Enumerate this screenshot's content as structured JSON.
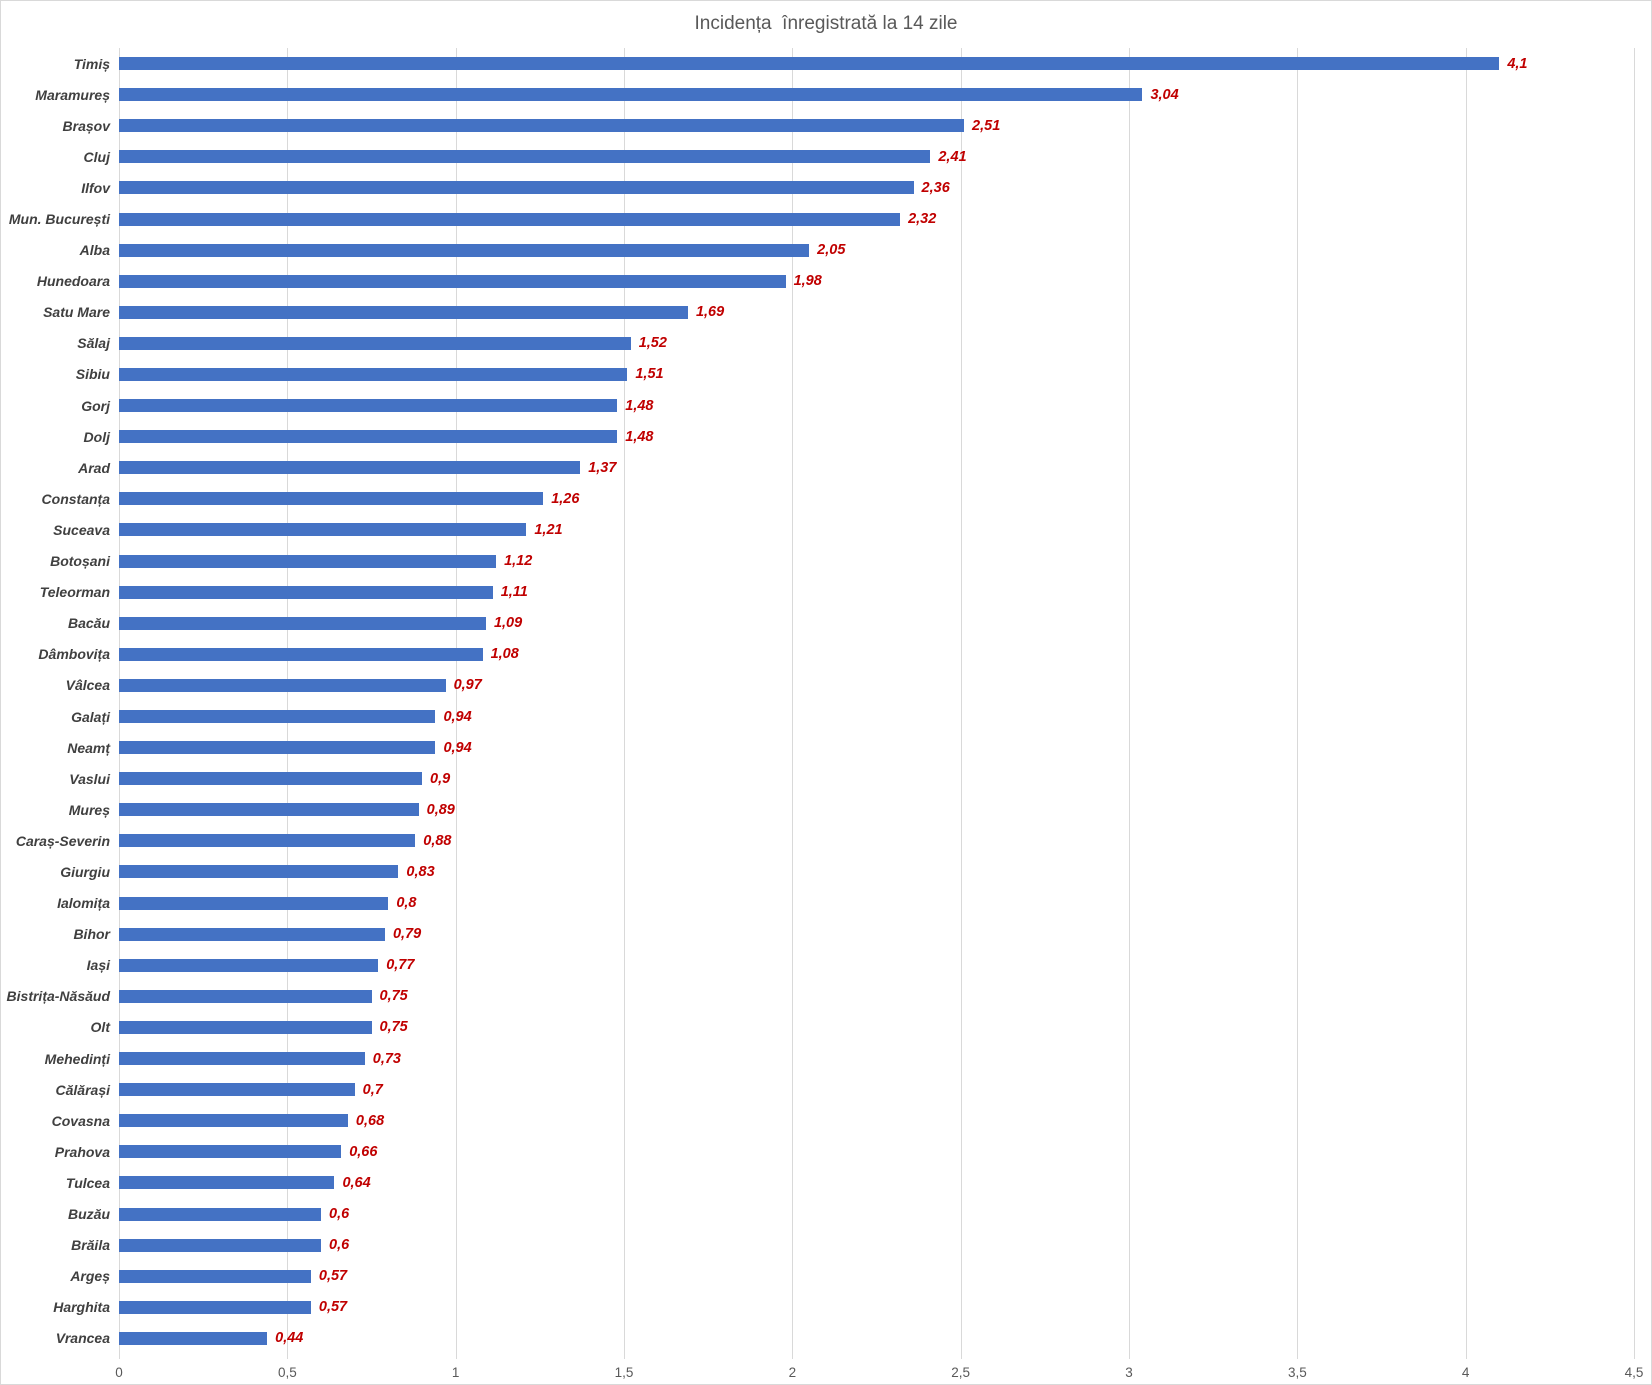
{
  "chart_data": {
    "type": "bar",
    "orientation": "horizontal",
    "title": "Incidența  înregistrată la 14 zile",
    "categories": [
      "Timiș",
      "Maramureș",
      "Brașov",
      "Cluj",
      "Ilfov",
      "Mun. București",
      "Alba",
      "Hunedoara",
      "Satu Mare",
      "Sălaj",
      "Sibiu",
      "Gorj",
      "Dolj",
      "Arad",
      "Constanța",
      "Suceava",
      "Botoșani",
      "Teleorman",
      "Bacău",
      "Dâmbovița",
      "Vâlcea",
      "Galați",
      "Neamț",
      "Vaslui",
      "Mureș",
      "Caraș-Severin",
      "Giurgiu",
      "Ialomița",
      "Bihor",
      "Iași",
      "Bistrița-Năsăud",
      "Olt",
      "Mehedinți",
      "Călărași",
      "Covasna",
      "Prahova",
      "Tulcea",
      "Buzău",
      "Brăila",
      "Argeș",
      "Harghita",
      "Vrancea"
    ],
    "values": [
      4.1,
      3.04,
      2.51,
      2.41,
      2.36,
      2.32,
      2.05,
      1.98,
      1.69,
      1.52,
      1.51,
      1.48,
      1.48,
      1.37,
      1.26,
      1.21,
      1.12,
      1.11,
      1.09,
      1.08,
      0.97,
      0.94,
      0.94,
      0.9,
      0.89,
      0.88,
      0.83,
      0.8,
      0.79,
      0.77,
      0.75,
      0.75,
      0.73,
      0.7,
      0.68,
      0.66,
      0.64,
      0.6,
      0.6,
      0.57,
      0.57,
      0.44
    ],
    "value_labels": [
      "4,1",
      "3,04",
      "2,51",
      "2,41",
      "2,36",
      "2,32",
      "2,05",
      "1,98",
      "1,69",
      "1,52",
      "1,51",
      "1,48",
      "1,48",
      "1,37",
      "1,26",
      "1,21",
      "1,12",
      "1,11",
      "1,09",
      "1,08",
      "0,97",
      "0,94",
      "0,94",
      "0,9",
      "0,89",
      "0,88",
      "0,83",
      "0,8",
      "0,79",
      "0,77",
      "0,75",
      "0,75",
      "0,73",
      "0,7",
      "0,68",
      "0,66",
      "0,64",
      "0,6",
      "0,6",
      "0,57",
      "0,57",
      "0,44"
    ],
    "xlabel": "",
    "ylabel": "",
    "xlim": [
      0,
      4.5
    ],
    "x_tick_labels": [
      "0",
      "0,5",
      "1",
      "1,5",
      "2",
      "2,5",
      "3",
      "3,5",
      "4",
      "4,5"
    ],
    "x_tick_values": [
      0,
      0.5,
      1,
      1.5,
      2,
      2.5,
      3,
      3.5,
      4,
      4.5
    ],
    "grid": "vertical",
    "legend": "none",
    "colors": {
      "bar": "#4472c4",
      "value_label": "#c00000",
      "category_label": "#404040",
      "axis_text": "#595959",
      "gridline": "#d9d9d9",
      "background": "#ffffff"
    }
  }
}
